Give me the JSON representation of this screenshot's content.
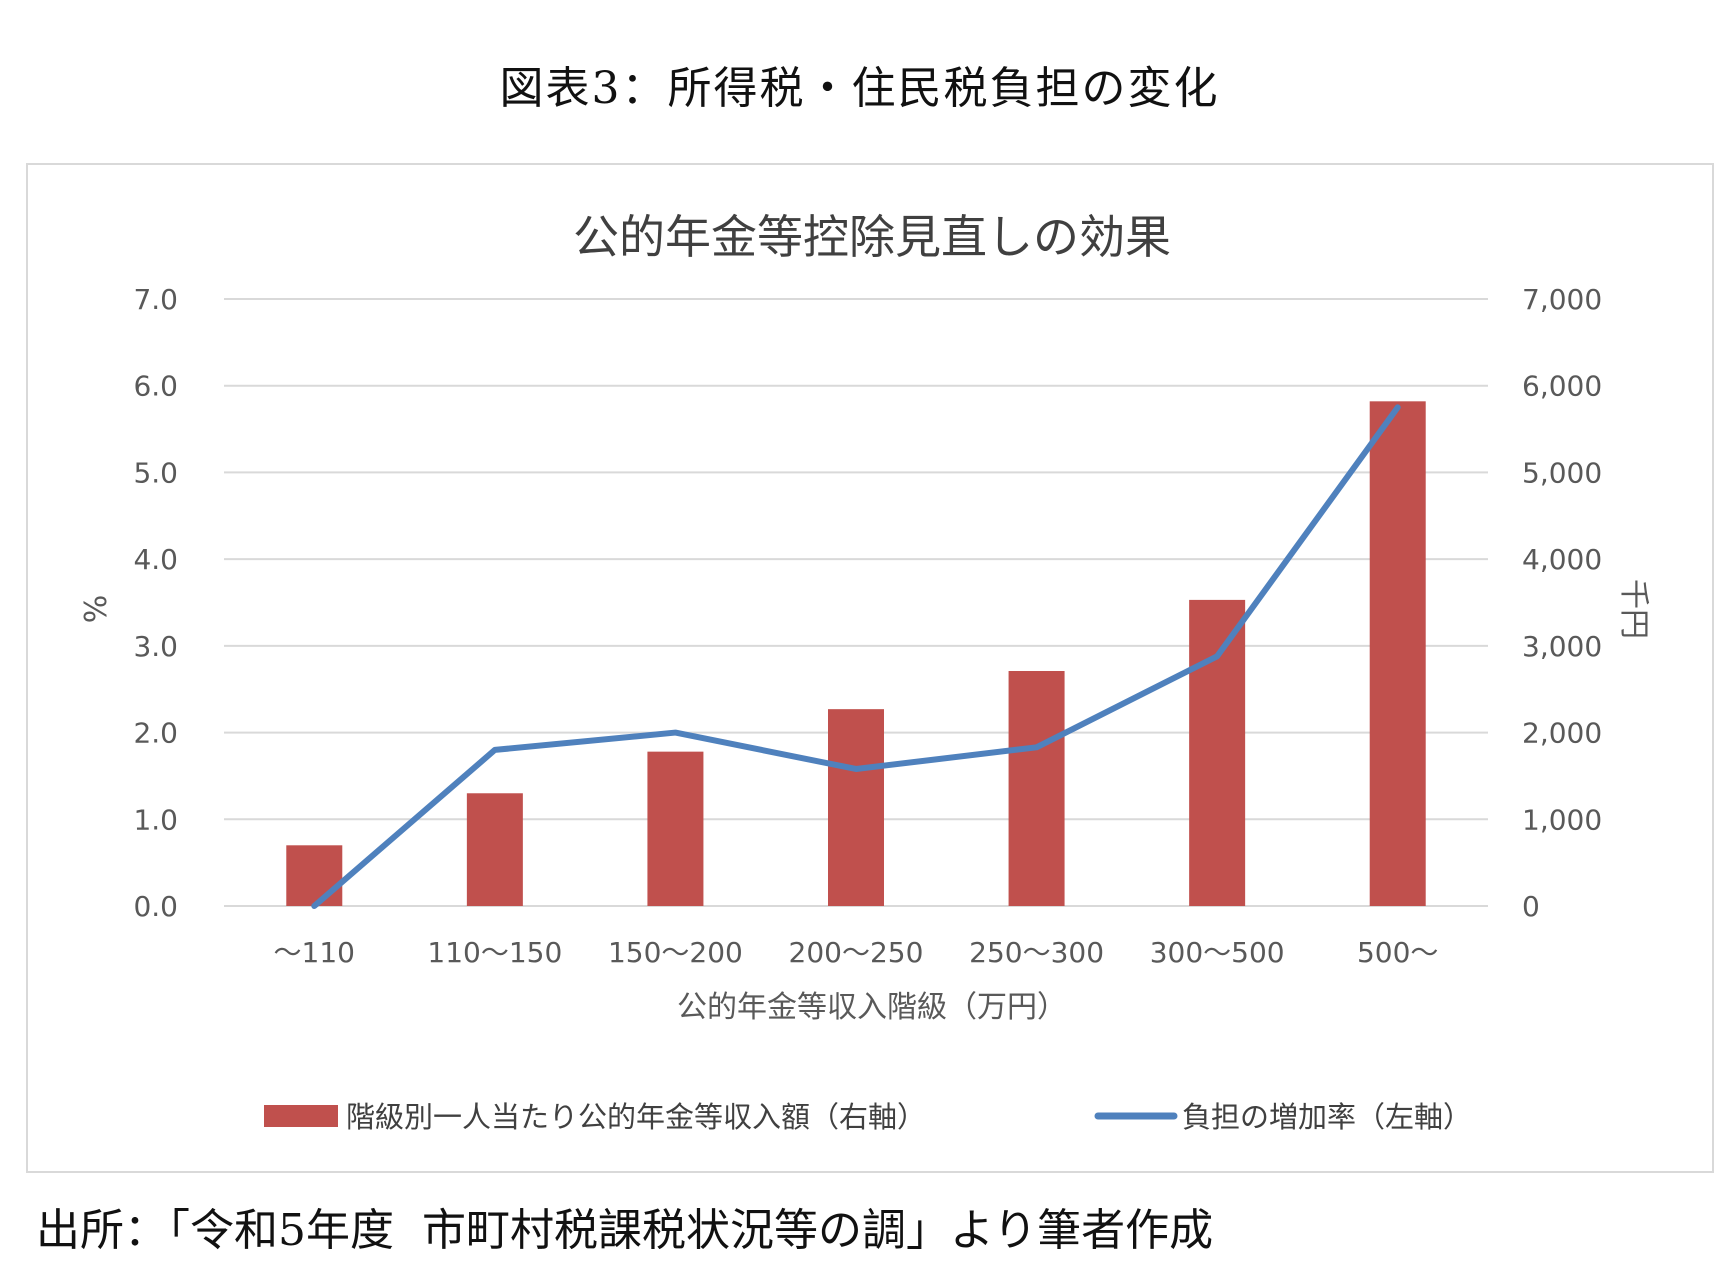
{
  "figure_heading": "図表3：所得税・住民税負担の変化",
  "source_note": "出所：「令和5年度  市町村税課税状況等の調」より筆者作成",
  "colors": {
    "bar": "#c0504d",
    "line": "#4f81bd",
    "grid": "#d9d9d9",
    "tick_text": "#595959",
    "title_text": "#404040"
  },
  "chart_data": {
    "type": "bar",
    "title": "公的年金等控除見直しの効果",
    "xlabel": "公的年金等収入階級（万円）",
    "ylabel_left": "%",
    "ylabel_right": "千円",
    "categories": [
      "〜110",
      "110〜150",
      "150〜200",
      "200〜250",
      "250〜300",
      "300〜500",
      "500〜"
    ],
    "ylim_left": [
      0,
      7
    ],
    "ylim_right": [
      0,
      7000
    ],
    "left_ticks": [
      "0.0",
      "1.0",
      "2.0",
      "3.0",
      "4.0",
      "5.0",
      "6.0",
      "7.0"
    ],
    "right_ticks": [
      "0",
      "1,000",
      "2,000",
      "3,000",
      "4,000",
      "5,000",
      "6,000",
      "7,000"
    ],
    "grid": true,
    "legend_position": "bottom",
    "series": [
      {
        "name": "階級別一人当たり公的年金等収入額（右軸）",
        "type": "bar",
        "axis": "right",
        "values": [
          700,
          1300,
          1780,
          2270,
          2710,
          3530,
          5820
        ]
      },
      {
        "name": "負担の増加率（左軸）",
        "type": "line",
        "axis": "left",
        "values": [
          0.0,
          1.8,
          2.0,
          1.58,
          1.83,
          2.88,
          5.75
        ]
      }
    ]
  }
}
